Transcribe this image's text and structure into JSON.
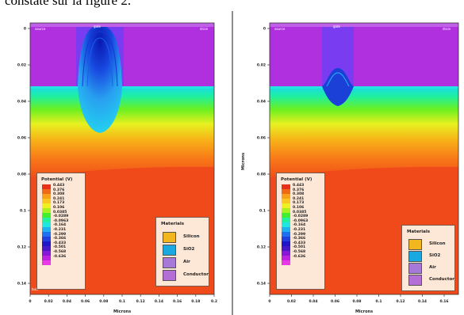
{
  "caption": "constate sur la figure 2.",
  "panels": [
    {
      "x_label": "Microns",
      "y_label": "",
      "x_ticks": [
        "0",
        "0.02",
        "0.04",
        "0.06",
        "0.08",
        "0.1",
        "0.12",
        "0.14",
        "0.16",
        "0.18",
        "0.2"
      ],
      "y_ticks": [
        "0",
        "0.02",
        "0.04",
        "0.06",
        "0.08",
        "0.1",
        "0.12",
        "0.14"
      ],
      "top_labels": [
        "source",
        "gate",
        "drain"
      ],
      "corner_label": "bulk",
      "legend_title": "Potential (V)",
      "legend_values": [
        "0.443",
        "0.376",
        "0.308",
        "0.241",
        "0.173",
        "0.106",
        "0.0385",
        "-0.0289",
        "-0.0963",
        "-0.164",
        "-0.231",
        "-0.299",
        "-0.366",
        "-0.433",
        "-0.501",
        "-0.568",
        "-0.636"
      ],
      "materials_title": "Materials",
      "materials": [
        {
          "name": "Silicon",
          "color": "#f2b61f"
        },
        {
          "name": "SiO2",
          "color": "#1aa8e0"
        },
        {
          "name": "Air",
          "color": "#a678d8"
        },
        {
          "name": "Conductor",
          "color": "#b36fd6"
        }
      ]
    },
    {
      "x_label": "Microns",
      "y_label": "Microns",
      "x_ticks": [
        "0",
        "0.02",
        "0.04",
        "0.06",
        "0.08",
        "0.1",
        "0.12",
        "0.14",
        "0.16"
      ],
      "y_ticks": [
        "0",
        "0.02",
        "0.04",
        "0.06",
        "0.08",
        "0.1",
        "0.12",
        "0.14"
      ],
      "top_labels": [
        "source",
        "gate",
        "drain"
      ],
      "corner_label": "",
      "legend_title": "Potential (V)",
      "legend_values": [
        "0.443",
        "0.376",
        "0.308",
        "0.241",
        "0.173",
        "0.106",
        "0.0385",
        "-0.0289",
        "-0.0963",
        "-0.164",
        "-0.231",
        "-0.299",
        "-0.366",
        "-0.433",
        "-0.501",
        "-0.568",
        "-0.636"
      ],
      "materials_title": "Materials",
      "materials": [
        {
          "name": "Silicon",
          "color": "#f2b61f"
        },
        {
          "name": "SiO2",
          "color": "#1aa8e0"
        },
        {
          "name": "Air",
          "color": "#a678d8"
        },
        {
          "name": "Conductor",
          "color": "#b36fd6"
        }
      ]
    }
  ],
  "colors": {
    "oxide_band": "#b030e0",
    "gate_region": "#7a3cf0",
    "substrate": "#f04a1a",
    "legend_bg": "#fde8d8"
  }
}
